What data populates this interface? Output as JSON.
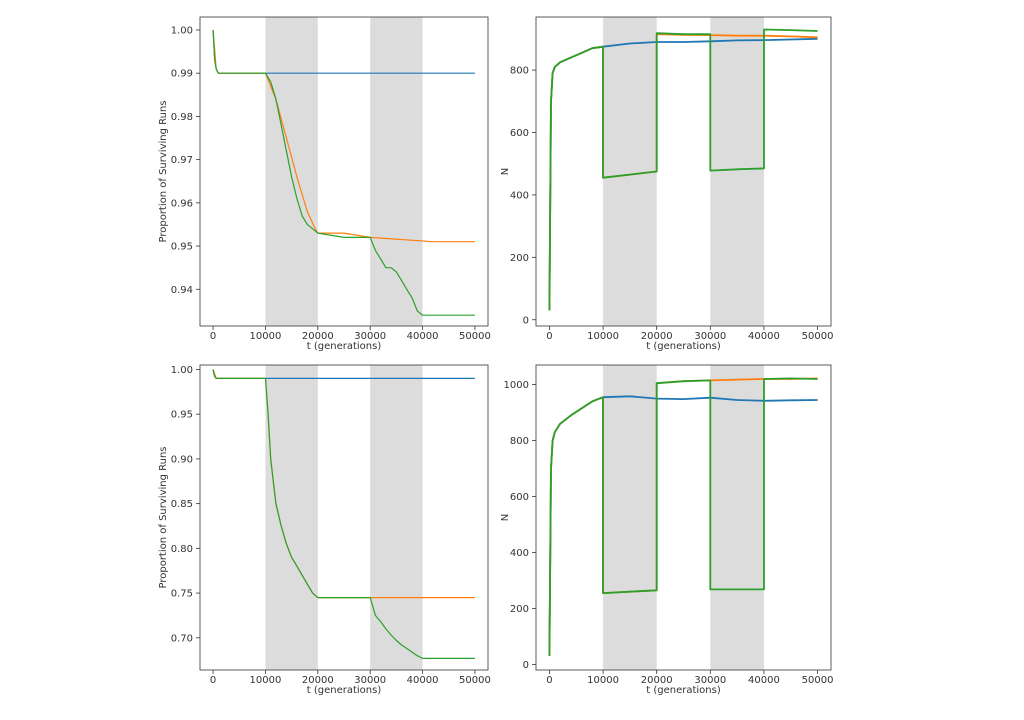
{
  "chart_data": [
    {
      "type": "line",
      "xlabel": "t (generations)",
      "ylabel": "Proportion of Surviving Runs",
      "xlim": [
        -2500,
        52500
      ],
      "ylim": [
        0.9315,
        1.003
      ],
      "xticks": [
        0,
        10000,
        20000,
        30000,
        40000,
        50000
      ],
      "yticks": [
        0.94,
        0.95,
        0.96,
        0.97,
        0.98,
        0.99,
        1.0
      ],
      "ytick_labels": [
        "0.94",
        "0.95",
        "0.96",
        "0.97",
        "0.98",
        "0.99",
        "1.00"
      ],
      "shaded_intervals": [
        [
          10000,
          20000
        ],
        [
          30000,
          40000
        ]
      ],
      "grid": false,
      "legend": "none",
      "series": [
        {
          "color": "#1f77b4",
          "x": [
            0,
            300,
            600,
            1000,
            50000
          ],
          "y": [
            1.0,
            0.993,
            0.991,
            0.99,
            0.99
          ]
        },
        {
          "color": "#ff7f0e",
          "x": [
            0,
            600,
            1000,
            10000,
            12000,
            14000,
            16000,
            18000,
            19500,
            20000,
            25000,
            30000,
            42000,
            50000
          ],
          "y": [
            1.0,
            0.991,
            0.99,
            0.99,
            0.984,
            0.975,
            0.966,
            0.958,
            0.954,
            0.953,
            0.953,
            0.952,
            0.951,
            0.951
          ]
        },
        {
          "color": "#2ca02c",
          "x": [
            0,
            300,
            600,
            1000,
            10000,
            11000,
            12000,
            13000,
            14000,
            15000,
            16000,
            17000,
            18000,
            19000,
            20000,
            25000,
            30000,
            31000,
            32000,
            33000,
            34000,
            35000,
            36000,
            37000,
            38000,
            39000,
            40000,
            50000
          ],
          "y": [
            1.0,
            0.993,
            0.991,
            0.99,
            0.99,
            0.988,
            0.984,
            0.978,
            0.972,
            0.966,
            0.961,
            0.957,
            0.955,
            0.954,
            0.953,
            0.952,
            0.952,
            0.949,
            0.947,
            0.945,
            0.945,
            0.944,
            0.942,
            0.94,
            0.938,
            0.935,
            0.934,
            0.934
          ]
        }
      ]
    },
    {
      "type": "line",
      "xlabel": "t (generations)",
      "ylabel": "N",
      "xlim": [
        -2500,
        52500
      ],
      "ylim": [
        -20,
        970
      ],
      "xticks": [
        0,
        10000,
        20000,
        30000,
        40000,
        50000
      ],
      "yticks": [
        0,
        200,
        400,
        600,
        800
      ],
      "ytick_labels": [
        "0",
        "200",
        "400",
        "600",
        "800"
      ],
      "shaded_intervals": [
        [
          10000,
          20000
        ],
        [
          30000,
          40000
        ]
      ],
      "grid": false,
      "legend": "none",
      "series": [
        {
          "color": "#1f77b4",
          "x": [
            0,
            300,
            600,
            1000,
            2000,
            4000,
            6000,
            8000,
            10000,
            15000,
            20000,
            25000,
            30000,
            35000,
            40000,
            45000,
            50000
          ],
          "y": [
            30,
            700,
            790,
            810,
            825,
            840,
            855,
            870,
            875,
            885,
            890,
            890,
            892,
            895,
            896,
            898,
            900
          ]
        },
        {
          "color": "#ff7f0e",
          "x": [
            0,
            300,
            600,
            1000,
            2000,
            4000,
            6000,
            8000,
            10000,
            10000,
            15000,
            20000,
            20000,
            25000,
            30000,
            30000,
            35000,
            40000,
            45000,
            50000
          ],
          "y": [
            30,
            700,
            790,
            810,
            825,
            840,
            855,
            870,
            875,
            455,
            465,
            475,
            915,
            913,
            912,
            912,
            910,
            910,
            908,
            905
          ]
        },
        {
          "color": "#2ca02c",
          "x": [
            0,
            300,
            600,
            1000,
            2000,
            4000,
            6000,
            8000,
            10000,
            10000,
            15000,
            20000,
            20000,
            25000,
            30000,
            30000,
            35000,
            40000,
            40000,
            45000,
            50000
          ],
          "y": [
            30,
            700,
            790,
            810,
            825,
            840,
            855,
            870,
            875,
            455,
            465,
            475,
            918,
            915,
            915,
            478,
            482,
            485,
            930,
            928,
            925
          ]
        }
      ]
    },
    {
      "type": "line",
      "xlabel": "t (generations)",
      "ylabel": "Proportion of Surviving Runs",
      "xlim": [
        -2500,
        52500
      ],
      "ylim": [
        0.664,
        1.005
      ],
      "xticks": [
        0,
        10000,
        20000,
        30000,
        40000,
        50000
      ],
      "yticks": [
        0.7,
        0.75,
        0.8,
        0.85,
        0.9,
        0.95,
        1.0
      ],
      "ytick_labels": [
        "0.70",
        "0.75",
        "0.80",
        "0.85",
        "0.90",
        "0.95",
        "1.00"
      ],
      "shaded_intervals": [
        [
          10000,
          20000
        ],
        [
          30000,
          40000
        ]
      ],
      "grid": false,
      "legend": "none",
      "series": [
        {
          "color": "#1f77b4",
          "x": [
            0,
            300,
            600,
            1000,
            50000
          ],
          "y": [
            1.0,
            0.992,
            0.99,
            0.99,
            0.99
          ]
        },
        {
          "color": "#ff7f0e",
          "x": [
            0,
            600,
            1000,
            10000,
            10500,
            11000,
            12000,
            13000,
            14000,
            15000,
            16000,
            17000,
            18000,
            19000,
            20000,
            30000,
            50000
          ],
          "y": [
            1.0,
            0.99,
            0.99,
            0.99,
            0.95,
            0.9,
            0.85,
            0.825,
            0.805,
            0.79,
            0.78,
            0.77,
            0.76,
            0.75,
            0.745,
            0.745,
            0.745
          ]
        },
        {
          "color": "#2ca02c",
          "x": [
            0,
            300,
            600,
            1000,
            10000,
            10500,
            11000,
            12000,
            13000,
            14000,
            15000,
            16000,
            17000,
            18000,
            19000,
            20000,
            30000,
            31000,
            32000,
            33000,
            34000,
            35000,
            36000,
            37000,
            38000,
            39000,
            40000,
            50000
          ],
          "y": [
            1.0,
            0.992,
            0.99,
            0.99,
            0.99,
            0.95,
            0.9,
            0.85,
            0.825,
            0.805,
            0.79,
            0.78,
            0.77,
            0.76,
            0.75,
            0.745,
            0.745,
            0.725,
            0.718,
            0.71,
            0.703,
            0.697,
            0.692,
            0.688,
            0.684,
            0.68,
            0.677,
            0.677
          ]
        }
      ]
    },
    {
      "type": "line",
      "xlabel": "t (generations)",
      "ylabel": "N",
      "xlim": [
        -2500,
        52500
      ],
      "ylim": [
        -20,
        1070
      ],
      "xticks": [
        0,
        10000,
        20000,
        30000,
        40000,
        50000
      ],
      "yticks": [
        0,
        200,
        400,
        600,
        800,
        1000
      ],
      "ytick_labels": [
        "0",
        "200",
        "400",
        "600",
        "800",
        "1000"
      ],
      "shaded_intervals": [
        [
          10000,
          20000
        ],
        [
          30000,
          40000
        ]
      ],
      "grid": false,
      "legend": "none",
      "series": [
        {
          "color": "#1f77b4",
          "x": [
            0,
            300,
            600,
            1000,
            2000,
            4000,
            6000,
            8000,
            10000,
            15000,
            20000,
            25000,
            30000,
            35000,
            40000,
            45000,
            50000
          ],
          "y": [
            30,
            700,
            800,
            830,
            860,
            890,
            915,
            940,
            955,
            958,
            950,
            948,
            953,
            945,
            942,
            944,
            945
          ]
        },
        {
          "color": "#ff7f0e",
          "x": [
            0,
            300,
            600,
            1000,
            2000,
            4000,
            6000,
            8000,
            10000,
            10000,
            15000,
            20000,
            20000,
            25000,
            30000,
            30000,
            35000,
            40000,
            45000,
            50000
          ],
          "y": [
            30,
            700,
            800,
            830,
            860,
            890,
            915,
            940,
            955,
            255,
            260,
            265,
            1005,
            1012,
            1015,
            1015,
            1018,
            1020,
            1020,
            1022
          ]
        },
        {
          "color": "#2ca02c",
          "x": [
            0,
            300,
            600,
            1000,
            2000,
            4000,
            6000,
            8000,
            10000,
            10000,
            15000,
            20000,
            20000,
            25000,
            30000,
            30000,
            35000,
            40000,
            40000,
            45000,
            50000
          ],
          "y": [
            30,
            700,
            800,
            830,
            860,
            890,
            915,
            940,
            955,
            255,
            260,
            265,
            1005,
            1012,
            1015,
            268,
            268,
            268,
            1020,
            1022,
            1020
          ]
        }
      ]
    }
  ],
  "colors": {
    "shade": "#dcdcdc",
    "axes": "#333333",
    "blue": "#1f77b4",
    "orange": "#ff7f0e",
    "green": "#2ca02c"
  }
}
